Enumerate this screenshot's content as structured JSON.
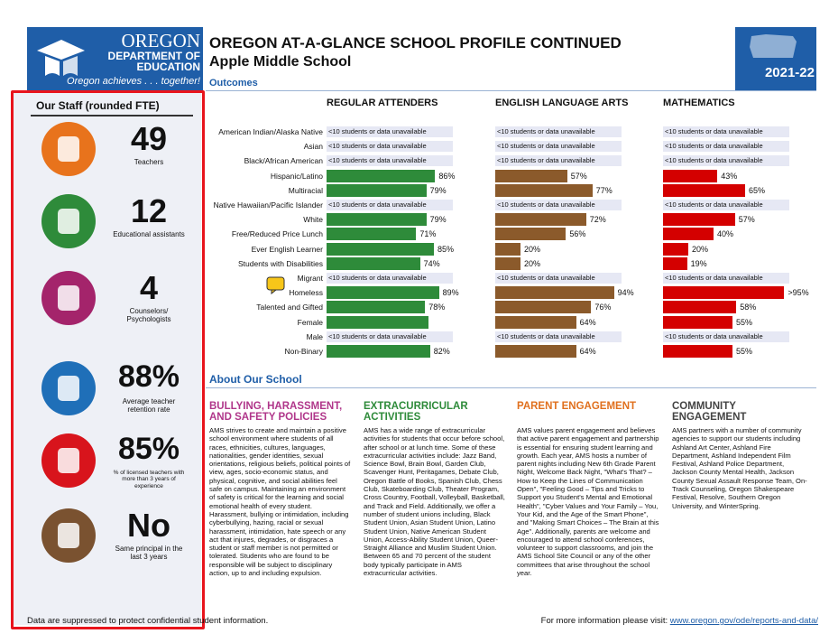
{
  "header": {
    "logo_title": "OREGON",
    "logo_subtitle": "DEPARTMENT OF EDUCATION",
    "logo_tagline": "Oregon achieves . . . together!",
    "title": "OREGON AT-A-GLANCE SCHOOL PROFILE CONTINUED",
    "school": "Apple Middle School",
    "year": "2021-22"
  },
  "staff": {
    "title": "Our Staff (rounded FTE)",
    "items": [
      {
        "value": "49",
        "label": "Teachers"
      },
      {
        "value": "12",
        "label": "Educational assistants"
      },
      {
        "value": "4",
        "label": "Counselors/ Psychologists"
      },
      {
        "value": "88%",
        "label": "Average teacher retention rate"
      },
      {
        "value": "85%",
        "label": "% of licensed teachers with more than 3 years of experience"
      },
      {
        "value": "No",
        "label": "Same principal in the last 3 years"
      }
    ]
  },
  "outcomes": {
    "title": "Outcomes",
    "xlim": [
      0,
      100
    ],
    "rows": [
      "American Indian/Alaska Native",
      "Asian",
      "Black/African American",
      "Hispanic/Latino",
      "Multiracial",
      "Native Hawaiian/Pacific Islander",
      "White",
      "Free/Reduced Price Lunch",
      "Ever English Learner",
      "Students with Disabilities",
      "Migrant",
      "Homeless",
      "Talented and Gifted",
      "Female",
      "Male",
      "Non-Binary"
    ],
    "columns": [
      {
        "name": "REGULAR ATTENDERS",
        "color": "#2e8b3a",
        "values": [
          null,
          null,
          null,
          86,
          79,
          null,
          79,
          71,
          85,
          74,
          null,
          89,
          78,
          81,
          null,
          82
        ],
        "value_labels": [
          "<10 students or data unavailable",
          "<10 students or data unavailable",
          "<10 students or data unavailable",
          "86%",
          "79%",
          "<10 students or data unavailable",
          "79%",
          "71%",
          "85%",
          "74%",
          "<10 students or data unavailable",
          "89%",
          "78%",
          null,
          "<10 students or data unavailable",
          "82%"
        ]
      },
      {
        "name": "ENGLISH LANGUAGE ARTS",
        "color": "#8b5a2b",
        "values": [
          null,
          null,
          null,
          57,
          77,
          null,
          72,
          56,
          20,
          20,
          null,
          94,
          76,
          64,
          null,
          64
        ],
        "value_labels": [
          "<10 students or data unavailable",
          "<10 students or data unavailable",
          "<10 students or data unavailable",
          "57%",
          "77%",
          "<10 students or data unavailable",
          "72%",
          "56%",
          "20%",
          "20%",
          "<10 students or data unavailable",
          "94%",
          "76%",
          "64%",
          "<10 students or data unavailable",
          "64%"
        ]
      },
      {
        "name": "MATHEMATICS",
        "color": "#d40000",
        "values": [
          null,
          null,
          null,
          43,
          65,
          null,
          57,
          40,
          20,
          19,
          null,
          96,
          58,
          55,
          null,
          55
        ],
        "value_labels": [
          "<10 students or data unavailable",
          "<10 students or data unavailable",
          "<10 students or data unavailable",
          "43%",
          "65%",
          "<10 students or data unavailable",
          "57%",
          "40%",
          "20%",
          "19%",
          "<10 students or data unavailable",
          ">95%",
          "58%",
          "55%",
          "<10 students or data unavailable",
          "55%"
        ]
      }
    ]
  },
  "about": {
    "title": "About Our School",
    "sections": [
      {
        "heading": "BULLYING, HARASSMENT, AND SAFETY POLICIES",
        "color": "#b0368a",
        "text": "AMS strives to create and maintain a positive school environment where students of all races, ethnicities, cultures, languages, nationalities, gender identities, sexual orientations, religious beliefs, political points of view, ages, socio-economic status, and physical, cognitive, and social abilities feel safe on campus. Maintaining an environment of safety is critical for the learning and social emotional health of every student. Harassment, bullying or intimidation, including cyberbullying, hazing, racial or sexual harassment, intimidation, hate speech or any act that injures, degrades, or disgraces a student or staff member is not permitted or tolerated. Students who are found to be responsible will be subject to disciplinary action, up to and including expulsion."
      },
      {
        "heading": "EXTRACURRICULAR ACTIVITIES",
        "color": "#2e8b3a",
        "text": "AMS has a wide range of extracurricular activities for students that occur before school, after school or at lunch time. Some of these extracurricular activities include: Jazz Band, Science Bowl, Brain Bowl, Garden Club, Scavenger Hunt, Peritagames, Debate Club, Oregon Battle of Books, Spanish Club, Chess Club, Skateboarding Club, Theater Program, Cross Country, Football, Volleyball, Basketball, and Track and Field. Additionally, we offer a number of student unions including, Black Student Union, Asian Student Union, Latino Student Union, Native American Student Union, Access-Ability Student Union, Queer-Straight Alliance and Muslim Student Union. Between 65 and 70 percent of the student body typically participate in AMS extracurricular activities."
      },
      {
        "heading": "PARENT ENGAGEMENT",
        "color": "#e0701e",
        "text": "AMS values parent engagement and believes that active parent engagement and partnership is essential for ensuring student learning and growth. Each year, AMS hosts a number of parent nights including New 6th Grade Parent Night, Welcome Back Night, \"What's That? – How to Keep the Lines of Communication Open\", \"Feeling Good – Tips and Tricks to Support you Student's Mental and Emotional Health\", \"Cyber Values and Your Family – You, Your Kid, and the Age of the Smart Phone\", and \"Making Smart Choices – The Brain at this Age\". Additionally, parents are welcome and encouraged to attend school conferences, volunteer to support classrooms, and join the AMS School Site Council or any of the other committees that arise throughout the school year."
      },
      {
        "heading": "COMMUNITY ENGAGEMENT",
        "color": "#444444",
        "text": "AMS partners with a number of community agencies to support our students including Ashland Art Center, Ashland Fire Department, Ashland Independent Film Festival, Ashland Police Department, Jackson County Mental Health, Jackson County Sexual Assault Response Team, On-Track Counseling, Oregon Shakespeare Festival, Resolve, Southern Oregon University, and WinterSpring."
      }
    ]
  },
  "footer": {
    "note": "Data are suppressed to protect confidential student information.",
    "more_info": "For more information please visit:",
    "link": "www.oregon.gov/ode/reports-and-data/"
  }
}
